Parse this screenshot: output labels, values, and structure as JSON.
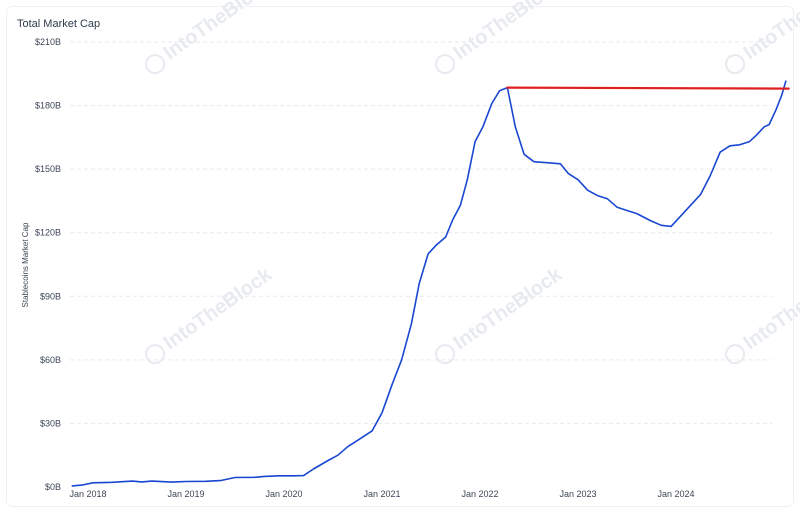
{
  "header": {
    "title": "Total Market Cap"
  },
  "watermark": {
    "text": "IntoTheBlock"
  },
  "colors": {
    "series_line": "#1947d1",
    "reference_line": "#e0201f",
    "grid": "#e6e9ee"
  },
  "chart_data": {
    "type": "line",
    "title": "Total Market Cap",
    "xlabel": "",
    "ylabel": "Stablecoins Market Cap",
    "ylim": [
      0,
      210
    ],
    "y_unit": "$B",
    "y_ticks": [
      "$0B",
      "$30B",
      "$60B",
      "$90B",
      "$120B",
      "$150B",
      "$180B",
      "$210B"
    ],
    "y_tick_values": [
      0,
      30,
      60,
      90,
      120,
      150,
      180,
      210
    ],
    "x_ticks": [
      "Jan 2018",
      "Jan 2019",
      "Jan 2020",
      "Jan 2021",
      "Jan 2022",
      "Jan 2023",
      "Jan 2024"
    ],
    "x_tick_values": [
      2018.0,
      2019.0,
      2020.0,
      2021.0,
      2022.0,
      2023.0,
      2024.0
    ],
    "xlim": [
      2017.84,
      2024.86
    ],
    "grid": true,
    "series": [
      {
        "values": [
          [
            2017.84,
            0.5
          ],
          [
            2017.95,
            1.0
          ],
          [
            2018.05,
            2.0
          ],
          [
            2018.25,
            2.2
          ],
          [
            2018.45,
            2.8
          ],
          [
            2018.55,
            2.4
          ],
          [
            2018.65,
            2.8
          ],
          [
            2018.85,
            2.3
          ],
          [
            2019.0,
            2.6
          ],
          [
            2019.2,
            2.7
          ],
          [
            2019.35,
            3.0
          ],
          [
            2019.5,
            4.5
          ],
          [
            2019.7,
            4.6
          ],
          [
            2019.8,
            5.0
          ],
          [
            2019.95,
            5.3
          ],
          [
            2020.1,
            5.3
          ],
          [
            2020.2,
            5.4
          ],
          [
            2020.3,
            8.5
          ],
          [
            2020.45,
            12.5
          ],
          [
            2020.55,
            15.0
          ],
          [
            2020.65,
            19.0
          ],
          [
            2020.75,
            22.0
          ],
          [
            2020.9,
            26.5
          ],
          [
            2021.0,
            35.0
          ],
          [
            2021.1,
            48.0
          ],
          [
            2021.2,
            60.0
          ],
          [
            2021.3,
            77.0
          ],
          [
            2021.38,
            96.0
          ],
          [
            2021.47,
            110.0
          ],
          [
            2021.55,
            114.0
          ],
          [
            2021.65,
            118.0
          ],
          [
            2021.72,
            126.0
          ],
          [
            2021.8,
            133.0
          ],
          [
            2021.87,
            145.0
          ],
          [
            2021.95,
            163.0
          ],
          [
            2022.03,
            170.0
          ],
          [
            2022.12,
            181.0
          ],
          [
            2022.2,
            187.0
          ],
          [
            2022.28,
            188.5
          ],
          [
            2022.36,
            170.0
          ],
          [
            2022.45,
            157.0
          ],
          [
            2022.55,
            153.5
          ],
          [
            2022.7,
            153.0
          ],
          [
            2022.82,
            152.5
          ],
          [
            2022.9,
            148.0
          ],
          [
            2023.0,
            145.0
          ],
          [
            2023.1,
            140.0
          ],
          [
            2023.2,
            137.5
          ],
          [
            2023.3,
            136.0
          ],
          [
            2023.4,
            132.0
          ],
          [
            2023.5,
            130.5
          ],
          [
            2023.6,
            129.0
          ],
          [
            2023.75,
            125.5
          ],
          [
            2023.85,
            123.5
          ],
          [
            2023.95,
            123.0
          ],
          [
            2024.05,
            128.0
          ],
          [
            2024.15,
            133.0
          ],
          [
            2024.25,
            138.0
          ],
          [
            2024.35,
            147.0
          ],
          [
            2024.45,
            158.0
          ],
          [
            2024.55,
            161.0
          ],
          [
            2024.65,
            161.5
          ],
          [
            2024.75,
            163.0
          ],
          [
            2024.82,
            166.0
          ],
          [
            2024.9,
            170.0
          ],
          [
            2024.95,
            171.0
          ],
          [
            2025.02,
            178.0
          ],
          [
            2025.08,
            185.0
          ],
          [
            2025.12,
            191.5
          ]
        ]
      },
      {
        "values": [
          [
            2022.28,
            188.5
          ],
          [
            2025.15,
            188.0
          ]
        ]
      }
    ]
  }
}
